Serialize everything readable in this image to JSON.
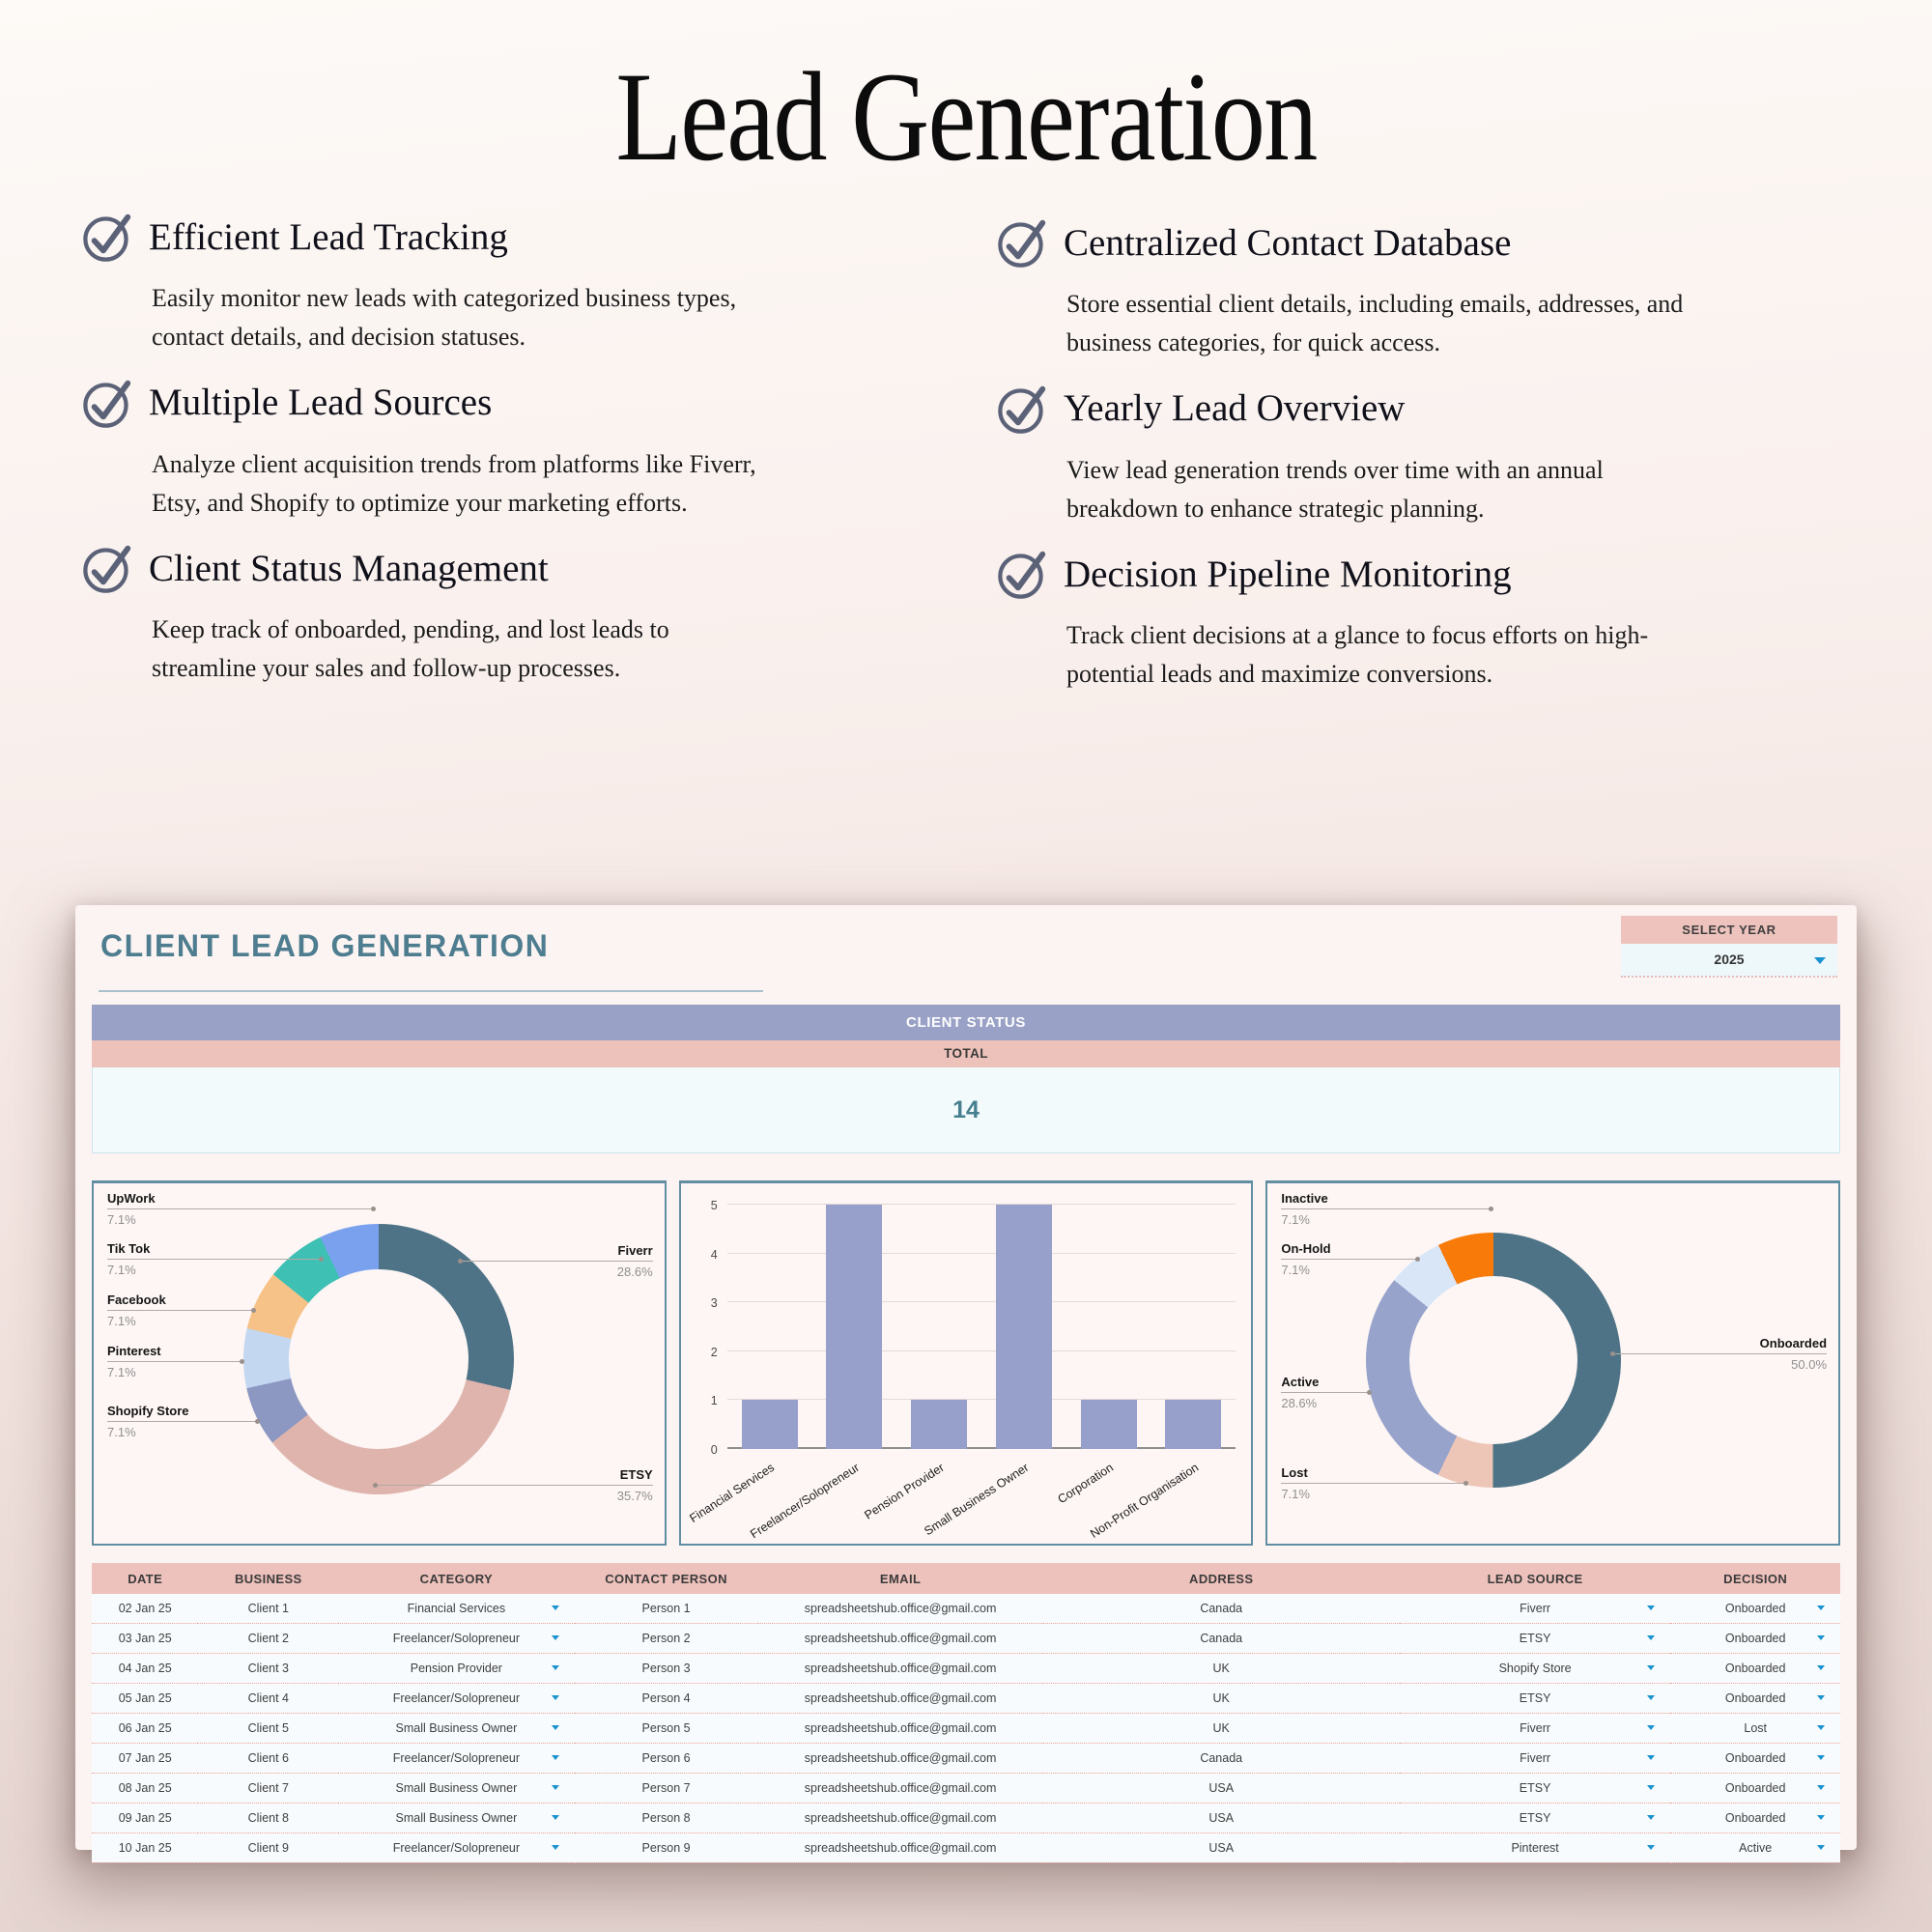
{
  "page": {
    "title": "Lead Generation"
  },
  "features": [
    {
      "title": "Efficient Lead Tracking",
      "description": "Easily monitor new leads with categorized business types, contact details, and decision statuses."
    },
    {
      "title": "Multiple Lead Sources",
      "description": "Analyze client acquisition trends from platforms like Fiverr, Etsy, and Shopify to optimize your marketing efforts."
    },
    {
      "title": "Client Status Management",
      "description": "Keep track of onboarded, pending, and lost leads to streamline your sales and follow-up processes."
    },
    {
      "title": "Centralized Contact Database",
      "description": "Store essential client details, including emails, addresses, and business categories, for quick access."
    },
    {
      "title": "Yearly Lead Overview",
      "description": "View lead generation trends over time with an annual breakdown to enhance strategic planning."
    },
    {
      "title": "Decision Pipeline Monitoring",
      "description": "Track client decisions at a glance to focus efforts on high-potential leads and maximize conversions."
    }
  ],
  "dashboard": {
    "title": "CLIENT LEAD GENERATION",
    "select_year": {
      "label": "SELECT YEAR",
      "value": "2025"
    },
    "status_summary": {
      "header": "CLIENT STATUS",
      "total_label": "TOTAL",
      "total_value": "14"
    }
  },
  "chart_data": [
    {
      "type": "donut",
      "legend_position": "callout-labels",
      "slices": [
        {
          "label": "Fiverr",
          "value": 28.6,
          "pct_label": "28.6%",
          "color": "#4e7386"
        },
        {
          "label": "ETSY",
          "value": 35.7,
          "pct_label": "35.7%",
          "color": "#dfb4ad"
        },
        {
          "label": "Shopify Store",
          "value": 7.1,
          "pct_label": "7.1%",
          "color": "#8c97c2"
        },
        {
          "label": "Pinterest",
          "value": 7.1,
          "pct_label": "7.1%",
          "color": "#c3d7f1"
        },
        {
          "label": "Facebook",
          "value": 7.1,
          "pct_label": "7.1%",
          "color": "#f7c287"
        },
        {
          "label": "Tik Tok",
          "value": 7.1,
          "pct_label": "7.1%",
          "color": "#3fc0b4"
        },
        {
          "label": "UpWork",
          "value": 7.1,
          "pct_label": "7.1%",
          "color": "#79a1ee"
        }
      ]
    },
    {
      "type": "bar",
      "categories": [
        "Financial Services",
        "Freelancer/Solopreneur",
        "Pension Provider",
        "Small Business Owner",
        "Corporation",
        "Non-Profit Organisation"
      ],
      "values": [
        1,
        5,
        1,
        5,
        1,
        1
      ],
      "ylim": [
        0,
        5
      ],
      "yticks": [
        0,
        1,
        2,
        3,
        4,
        5
      ],
      "grid": true,
      "bar_color": "#97a0ca"
    },
    {
      "type": "donut",
      "legend_position": "callout-labels",
      "slices": [
        {
          "label": "Onboarded",
          "value": 50.0,
          "pct_label": "50.0%",
          "color": "#4e7386"
        },
        {
          "label": "Lost",
          "value": 7.1,
          "pct_label": "7.1%",
          "color": "#eec6b8"
        },
        {
          "label": "Active",
          "value": 28.6,
          "pct_label": "28.6%",
          "color": "#97a3cb"
        },
        {
          "label": "On-Hold",
          "value": 7.1,
          "pct_label": "7.1%",
          "color": "#d8e6f8"
        },
        {
          "label": "Inactive",
          "value": 7.1,
          "pct_label": "7.1%",
          "color": "#f87b0a"
        }
      ]
    }
  ],
  "table": {
    "headers": [
      "DATE",
      "BUSINESS",
      "CATEGORY",
      "CONTACT PERSON",
      "EMAIL",
      "ADDRESS",
      "LEAD SOURCE",
      "DECISION"
    ],
    "dropdown_columns": [
      2,
      6,
      7
    ],
    "rows": [
      [
        "02 Jan 25",
        "Client 1",
        "Financial Services",
        "Person 1",
        "spreadsheetshub.office@gmail.com",
        "Canada",
        "Fiverr",
        "Onboarded"
      ],
      [
        "03 Jan 25",
        "Client 2",
        "Freelancer/Solopreneur",
        "Person 2",
        "spreadsheetshub.office@gmail.com",
        "Canada",
        "ETSY",
        "Onboarded"
      ],
      [
        "04 Jan 25",
        "Client 3",
        "Pension Provider",
        "Person 3",
        "spreadsheetshub.office@gmail.com",
        "UK",
        "Shopify Store",
        "Onboarded"
      ],
      [
        "05 Jan 25",
        "Client 4",
        "Freelancer/Solopreneur",
        "Person 4",
        "spreadsheetshub.office@gmail.com",
        "UK",
        "ETSY",
        "Onboarded"
      ],
      [
        "06 Jan 25",
        "Client 5",
        "Small Business Owner",
        "Person 5",
        "spreadsheetshub.office@gmail.com",
        "UK",
        "Fiverr",
        "Lost"
      ],
      [
        "07 Jan 25",
        "Client 6",
        "Freelancer/Solopreneur",
        "Person 6",
        "spreadsheetshub.office@gmail.com",
        "Canada",
        "Fiverr",
        "Onboarded"
      ],
      [
        "08 Jan 25",
        "Client 7",
        "Small Business Owner",
        "Person 7",
        "spreadsheetshub.office@gmail.com",
        "USA",
        "ETSY",
        "Onboarded"
      ],
      [
        "09 Jan 25",
        "Client 8",
        "Small Business Owner",
        "Person 8",
        "spreadsheetshub.office@gmail.com",
        "USA",
        "ETSY",
        "Onboarded"
      ],
      [
        "10 Jan 25",
        "Client 9",
        "Freelancer/Solopreneur",
        "Person 9",
        "spreadsheetshub.office@gmail.com",
        "USA",
        "Pinterest",
        "Active"
      ]
    ]
  },
  "colors": {
    "select_year_bg": "#eec3bd",
    "status_header_bg": "#99a1c6",
    "total_bg": "#edc2bb",
    "value_color": "#46808f",
    "dash_title_color": "#4e7d90",
    "table_header_bg": "#eec2bc",
    "dropdown_arrow": "#1b93cf",
    "panel_border": "#628ea4",
    "checkmark": "#5b6278"
  }
}
